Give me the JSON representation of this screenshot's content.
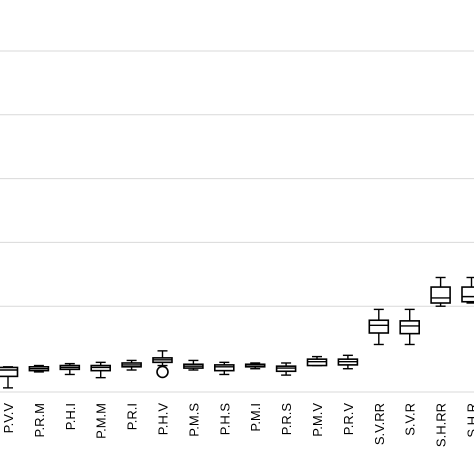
{
  "chart_data": {
    "type": "box",
    "title": "",
    "xlabel": "",
    "ylabel": "",
    "grid": true,
    "ylim": [
      0,
      7
    ],
    "gridlines": [
      1,
      2,
      3,
      4,
      5,
      6,
      7
    ],
    "categories": [
      "P.V.V",
      "P.R.M",
      "P.H.I",
      "P.M.M",
      "P.R.I",
      "P.H.V",
      "P.M.S",
      "P.H.S",
      "P.M.I",
      "P.R.S",
      "P.M.V",
      "P.R.V",
      "S.V.RR",
      "S.V.R",
      "S.H.RR",
      "S.H.R"
    ],
    "boxes": [
      {
        "label": "P.V.V",
        "min": -0.28,
        "q1": -0.1,
        "median": 0.0,
        "q3": 0.04,
        "max": 0.05,
        "outliers": []
      },
      {
        "label": "P.R.M",
        "min": -0.03,
        "q1": -0.01,
        "median": 0.02,
        "q3": 0.05,
        "max": 0.07,
        "outliers": []
      },
      {
        "label": "P.H.I",
        "min": -0.07,
        "q1": 0.01,
        "median": 0.04,
        "q3": 0.07,
        "max": 0.1,
        "outliers": []
      },
      {
        "label": "P.M.M",
        "min": -0.12,
        "q1": -0.01,
        "median": 0.04,
        "q3": 0.07,
        "max": 0.12,
        "outliers": []
      },
      {
        "label": "P.R.I",
        "min": 0.0,
        "q1": 0.05,
        "median": 0.08,
        "q3": 0.11,
        "max": 0.15,
        "outliers": []
      },
      {
        "label": "P.H.V",
        "min": 0.07,
        "q1": 0.12,
        "median": 0.16,
        "q3": 0.19,
        "max": 0.3,
        "outliers": [
          -0.03
        ]
      },
      {
        "label": "P.M.S",
        "min": 0.0,
        "q1": 0.03,
        "median": 0.06,
        "q3": 0.09,
        "max": 0.15,
        "outliers": []
      },
      {
        "label": "P.H.S",
        "min": -0.07,
        "q1": -0.01,
        "median": 0.05,
        "q3": 0.08,
        "max": 0.12,
        "outliers": []
      },
      {
        "label": "P.M.I",
        "min": 0.02,
        "q1": 0.05,
        "median": 0.08,
        "q3": 0.09,
        "max": 0.11,
        "outliers": []
      },
      {
        "label": "P.R.S",
        "min": -0.08,
        "q1": -0.02,
        "median": 0.03,
        "q3": 0.06,
        "max": 0.11,
        "outliers": []
      },
      {
        "label": "P.M.V",
        "min": 0.07,
        "q1": 0.07,
        "median": 0.13,
        "q3": 0.17,
        "max": 0.21,
        "outliers": []
      },
      {
        "label": "P.R.V",
        "min": 0.02,
        "q1": 0.08,
        "median": 0.13,
        "q3": 0.17,
        "max": 0.23,
        "outliers": []
      },
      {
        "label": "S.V.RR",
        "min": 0.4,
        "q1": 0.58,
        "median": 0.7,
        "q3": 0.78,
        "max": 0.95,
        "outliers": []
      },
      {
        "label": "S.V.R",
        "min": 0.4,
        "q1": 0.57,
        "median": 0.69,
        "q3": 0.77,
        "max": 0.95,
        "outliers": []
      },
      {
        "label": "S.H.RR",
        "min": 1.0,
        "q1": 1.05,
        "median": 1.13,
        "q3": 1.3,
        "max": 1.45,
        "outliers": []
      },
      {
        "label": "S.H.R",
        "min": 1.05,
        "q1": 1.07,
        "median": 1.15,
        "q3": 1.3,
        "max": 1.45,
        "outliers": []
      }
    ]
  }
}
